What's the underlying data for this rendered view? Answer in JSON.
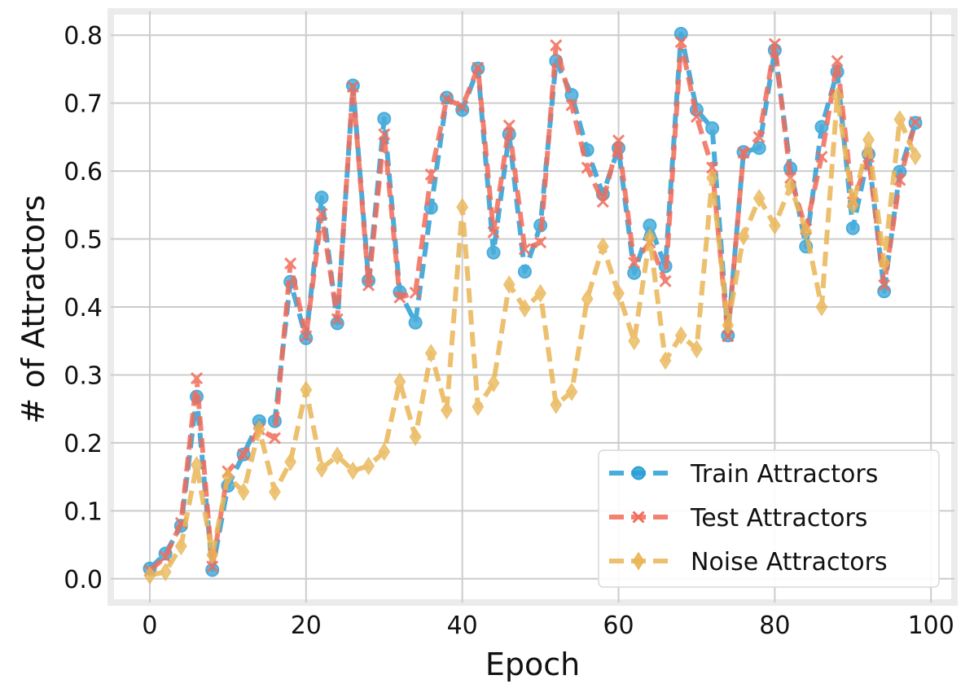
{
  "chart_data": {
    "type": "line",
    "title": "",
    "xlabel": "Epoch",
    "ylabel": "# of Attractors",
    "xlim": [
      -5,
      103
    ],
    "ylim": [
      -0.035,
      0.835
    ],
    "xticks": [
      0,
      20,
      40,
      60,
      80,
      100
    ],
    "yticks": [
      0.0,
      0.1,
      0.2,
      0.3,
      0.4,
      0.5,
      0.6,
      0.7,
      0.8
    ],
    "xtick_labels": [
      "0",
      "20",
      "40",
      "60",
      "80",
      "100"
    ],
    "ytick_labels": [
      "0.0",
      "0.1",
      "0.2",
      "0.3",
      "0.4",
      "0.5",
      "0.6",
      "0.7",
      "0.8"
    ],
    "grid": true,
    "legend_position": "lower-right",
    "x": [
      0,
      2,
      4,
      6,
      8,
      10,
      12,
      14,
      16,
      18,
      20,
      22,
      24,
      26,
      28,
      30,
      32,
      34,
      36,
      38,
      40,
      42,
      44,
      46,
      48,
      50,
      52,
      54,
      56,
      58,
      60,
      62,
      64,
      66,
      68,
      70,
      72,
      74,
      76,
      78,
      80,
      82,
      84,
      86,
      88,
      90,
      92,
      94,
      96,
      98
    ],
    "series": [
      {
        "name": "Train Attractors",
        "color": "#2a9fd6",
        "marker": "circle",
        "values": [
          0.015,
          0.037,
          0.078,
          0.268,
          0.013,
          0.137,
          0.183,
          0.232,
          0.232,
          0.437,
          0.354,
          0.561,
          0.376,
          0.726,
          0.439,
          0.677,
          0.422,
          0.377,
          0.546,
          0.708,
          0.69,
          0.751,
          0.48,
          0.654,
          0.452,
          0.52,
          0.762,
          0.712,
          0.631,
          0.566,
          0.634,
          0.45,
          0.52,
          0.46,
          0.802,
          0.69,
          0.663,
          0.358,
          0.628,
          0.634,
          0.778,
          0.604,
          0.489,
          0.665,
          0.746,
          0.516,
          0.625,
          0.423,
          0.599,
          0.671
        ]
      },
      {
        "name": "Test Attractors",
        "color": "#f26c5a",
        "marker": "x",
        "values": [
          0.012,
          0.032,
          0.082,
          0.295,
          0.018,
          0.158,
          0.183,
          0.22,
          0.207,
          0.464,
          0.357,
          0.537,
          0.382,
          0.724,
          0.432,
          0.654,
          0.414,
          0.421,
          0.595,
          0.706,
          0.695,
          0.752,
          0.51,
          0.667,
          0.485,
          0.495,
          0.785,
          0.697,
          0.605,
          0.555,
          0.645,
          0.465,
          0.495,
          0.438,
          0.79,
          0.68,
          0.605,
          0.357,
          0.627,
          0.65,
          0.787,
          0.59,
          0.515,
          0.621,
          0.762,
          0.554,
          0.621,
          0.432,
          0.587,
          0.672
        ]
      },
      {
        "name": "Noise Attractors",
        "color": "#e9b655",
        "marker": "diamond",
        "values": [
          0.005,
          0.01,
          0.048,
          0.167,
          0.035,
          0.15,
          0.128,
          0.22,
          0.128,
          0.172,
          0.278,
          0.162,
          0.181,
          0.159,
          0.166,
          0.187,
          0.29,
          0.209,
          0.332,
          0.248,
          0.547,
          0.253,
          0.288,
          0.433,
          0.398,
          0.42,
          0.256,
          0.275,
          0.412,
          0.489,
          0.42,
          0.35,
          0.502,
          0.321,
          0.358,
          0.338,
          0.59,
          0.373,
          0.504,
          0.56,
          0.52,
          0.578,
          0.512,
          0.4,
          0.71,
          0.55,
          0.646,
          0.465,
          0.676,
          0.622
        ]
      }
    ]
  }
}
